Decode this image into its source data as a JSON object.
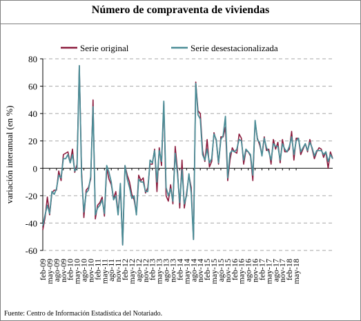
{
  "title": "Número de compraventa de viviendas",
  "source": "Fuente: Centro de Información Estadística del Notariado.",
  "chart_data": {
    "type": "line",
    "title": "Número de compraventa de viviendas",
    "ylabel": "variación interanual (en %)",
    "xlabel": "",
    "ylim": [
      -60,
      80
    ],
    "yticks": [
      -60,
      -40,
      -20,
      0,
      20,
      40,
      60,
      80
    ],
    "grid": true,
    "legend_position": "top",
    "x_start": "2009-02",
    "x_tick_labels": [
      "feb-09",
      "may-09",
      "ago-09",
      "nov-09",
      "feb-10",
      "may-10",
      "ago-10",
      "nov-10",
      "feb-11",
      "may-11",
      "ago-11",
      "nov-11",
      "feb-12",
      "may-12",
      "ago-12",
      "nov-12",
      "feb-13",
      "may-13",
      "ago-13",
      "nov-13",
      "feb-14",
      "may-14",
      "ago-14",
      "nov-14",
      "feb-15",
      "may-15",
      "ago-15",
      "nov-15",
      "feb-16",
      "may-16",
      "ago-16",
      "nov-16",
      "feb-17",
      "may-17",
      "ago-17",
      "nov-17",
      "feb-18",
      "may-18"
    ],
    "series": [
      {
        "name": "Serie original",
        "color": "#8b1a3c",
        "values": [
          -45,
          -36,
          -21,
          -34,
          -18,
          -16,
          -16,
          -2,
          -9,
          10,
          11,
          12,
          4,
          14,
          -3,
          3,
          75,
          -2,
          -36,
          -16,
          -14,
          -8,
          50,
          -37,
          -27,
          -25,
          -21,
          -35,
          0,
          -8,
          -12,
          -22,
          -17,
          -33,
          -14,
          -56,
          2,
          -5,
          -10,
          -19,
          -23,
          -33,
          -5,
          -9,
          -7,
          -18,
          -14,
          3,
          3,
          14,
          -17,
          15,
          2,
          48,
          -20,
          -24,
          -12,
          -26,
          16,
          -1,
          -29,
          6,
          -29,
          -18,
          -5,
          -14,
          -52,
          63,
          42,
          40,
          13,
          5,
          21,
          1,
          5,
          26,
          20,
          3,
          23,
          23,
          30,
          -9,
          6,
          15,
          12,
          11,
          25,
          22,
          3,
          13,
          12,
          9,
          -9,
          34,
          22,
          17,
          10,
          23,
          13,
          14,
          3,
          21,
          14,
          19,
          4,
          21,
          12,
          12,
          14,
          27,
          6,
          22,
          22,
          10,
          14,
          18,
          12,
          21,
          14,
          7,
          12,
          15,
          14,
          8,
          12,
          0,
          12,
          7
        ]
      },
      {
        "name": "Serie desestacionalizada",
        "color": "#4a8c96",
        "values": [
          -42,
          -34,
          -27,
          -33,
          -17,
          -19,
          -15,
          -5,
          -7,
          7,
          7,
          10,
          4,
          10,
          -2,
          0,
          75,
          -6,
          -32,
          -18,
          -16,
          -6,
          45,
          -34,
          -29,
          -27,
          -23,
          -33,
          2,
          -3,
          -10,
          -23,
          -20,
          -34,
          -11,
          -56,
          2,
          -8,
          -14,
          -22,
          -20,
          -34,
          -8,
          -10,
          -10,
          -17,
          -17,
          6,
          4,
          13,
          -10,
          13,
          5,
          49,
          -14,
          -20,
          -15,
          -24,
          11,
          -4,
          -25,
          -1,
          -26,
          -20,
          -4,
          -18,
          -52,
          62,
          39,
          36,
          10,
          6,
          14,
          4,
          7,
          25,
          21,
          4,
          21,
          24,
          38,
          -7,
          11,
          13,
          12,
          14,
          21,
          20,
          6,
          14,
          12,
          10,
          -5,
          35,
          21,
          19,
          9,
          22,
          15,
          12,
          6,
          18,
          16,
          16,
          6,
          18,
          14,
          12,
          16,
          23,
          10,
          20,
          22,
          12,
          15,
          18,
          13,
          19,
          15,
          9,
          13,
          13,
          13,
          10,
          12,
          5,
          10,
          7
        ]
      }
    ]
  }
}
